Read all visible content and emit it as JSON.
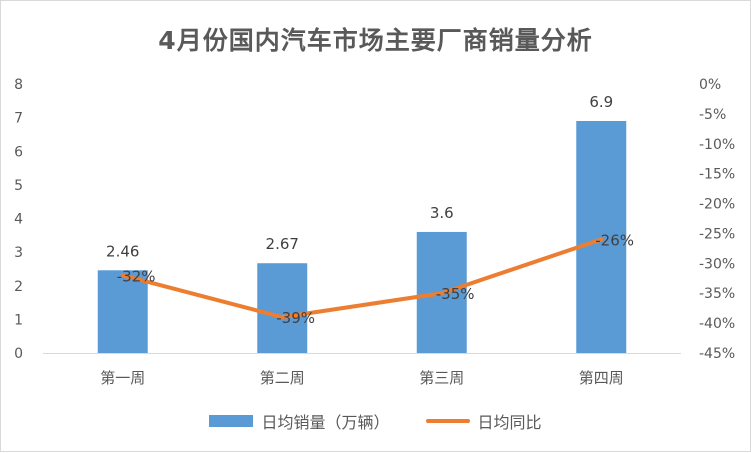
{
  "chart_data": {
    "type": "bar",
    "title": "4月份国内汽车市场主要厂商销量分析",
    "categories": [
      "第一周",
      "第二周",
      "第三周",
      "第四周"
    ],
    "series": [
      {
        "name": "日均销量（万辆）",
        "type": "bar",
        "axis": "left",
        "values": [
          2.46,
          2.67,
          3.6,
          6.9
        ],
        "labels": [
          "2.46",
          "2.67",
          "3.6",
          "6.9"
        ],
        "color": "#5b9bd5"
      },
      {
        "name": "日均同比",
        "type": "line",
        "axis": "right",
        "values": [
          -32,
          -39,
          -35,
          -26
        ],
        "labels": [
          "-32%",
          "-39%",
          "-35%",
          "-26%"
        ],
        "color": "#ed7d31"
      }
    ],
    "y_left": {
      "ylim": [
        0,
        8
      ],
      "ticks": [
        "0",
        "1",
        "2",
        "3",
        "4",
        "5",
        "6",
        "7",
        "8"
      ]
    },
    "y_right": {
      "ylim": [
        -45,
        0
      ],
      "ticks": [
        "0%",
        "-5%",
        "-10%",
        "-15%",
        "-20%",
        "-25%",
        "-30%",
        "-35%",
        "-40%",
        "-45%"
      ]
    },
    "grid": false,
    "legend_position": "bottom"
  }
}
